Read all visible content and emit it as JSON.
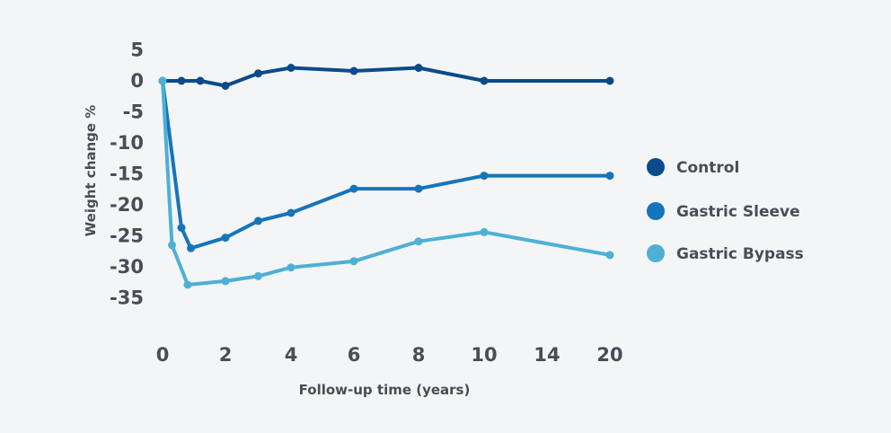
{
  "chart_data": {
    "type": "line",
    "title": "",
    "xlabel": "Follow-up time (years)",
    "ylabel": "Weight change %",
    "x_ticks": [
      "0",
      "2",
      "4",
      "6",
      "8",
      "10",
      "14",
      "20"
    ],
    "y_ticks": [
      5,
      0,
      -5,
      -10,
      -15,
      -20,
      -25,
      -30,
      -35
    ],
    "ylim": [
      -35,
      5
    ],
    "grid": false,
    "legend_position": "right",
    "series": [
      {
        "name": "Control",
        "color": "#0b4a8b",
        "points": [
          {
            "x": 0,
            "y": 0
          },
          {
            "x": 0.6,
            "y": 0
          },
          {
            "x": 1.2,
            "y": 0
          },
          {
            "x": 2,
            "y": -0.8
          },
          {
            "x": 3,
            "y": 1.2
          },
          {
            "x": 4,
            "y": 2.1
          },
          {
            "x": 6,
            "y": 1.6
          },
          {
            "x": 8,
            "y": 2.1
          },
          {
            "x": 10,
            "y": 0
          },
          {
            "x": 20,
            "y": 0
          }
        ]
      },
      {
        "name": "Gastric Sleeve",
        "color": "#1575ba",
        "points": [
          {
            "x": 0,
            "y": 0
          },
          {
            "x": 0.6,
            "y": -23.7
          },
          {
            "x": 0.9,
            "y": -27
          },
          {
            "x": 2,
            "y": -25.3
          },
          {
            "x": 3,
            "y": -22.6
          },
          {
            "x": 4,
            "y": -21.3
          },
          {
            "x": 6,
            "y": -17.4
          },
          {
            "x": 8,
            "y": -17.4
          },
          {
            "x": 10,
            "y": -15.3
          },
          {
            "x": 20,
            "y": -15.3
          }
        ]
      },
      {
        "name": "Gastric Bypass",
        "color": "#4eb0d6",
        "points": [
          {
            "x": 0,
            "y": 0
          },
          {
            "x": 0.3,
            "y": -26.5
          },
          {
            "x": 0.8,
            "y": -32.9
          },
          {
            "x": 2,
            "y": -32.3
          },
          {
            "x": 3,
            "y": -31.5
          },
          {
            "x": 4,
            "y": -30.1
          },
          {
            "x": 6,
            "y": -29.1
          },
          {
            "x": 8,
            "y": -25.9
          },
          {
            "x": 10,
            "y": -24.4
          },
          {
            "x": 20,
            "y": -28.1
          }
        ]
      }
    ]
  }
}
